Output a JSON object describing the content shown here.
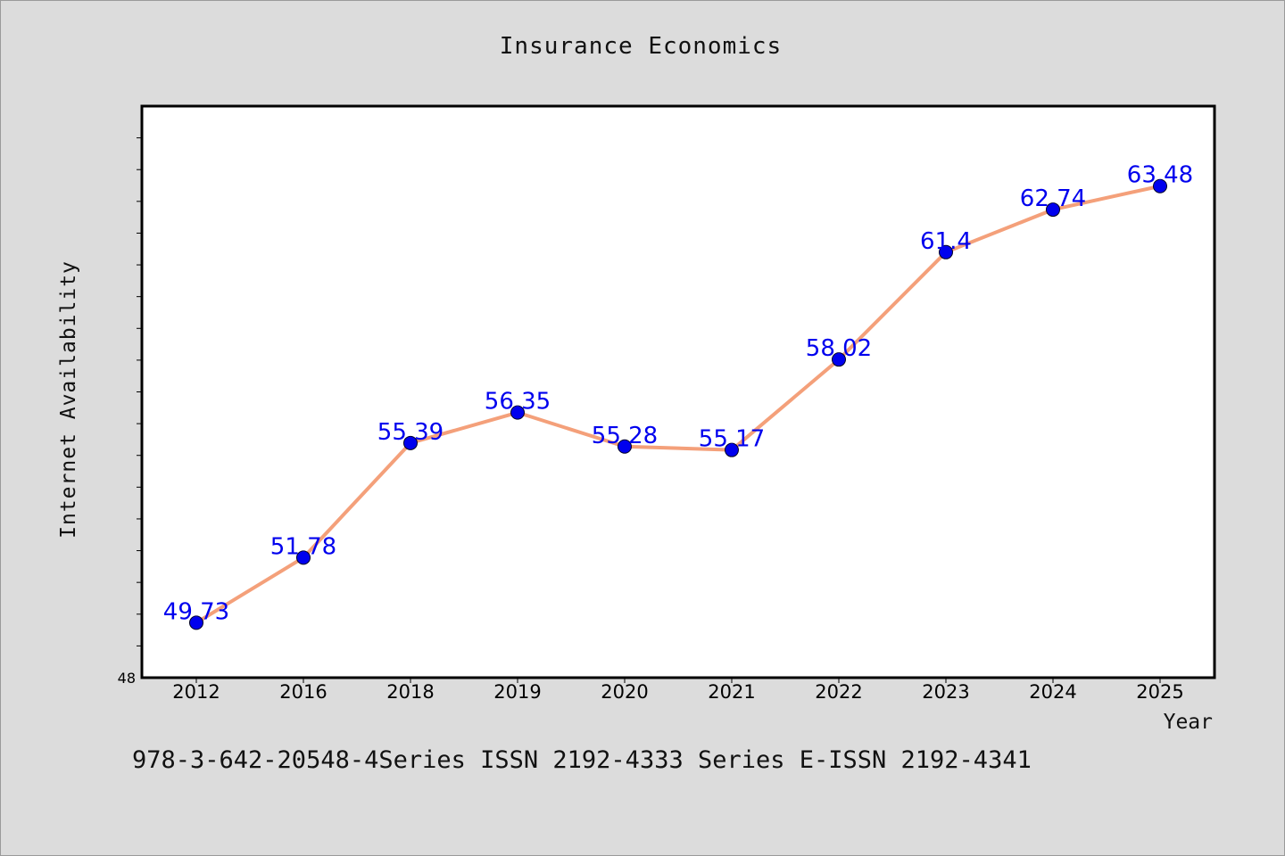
{
  "chart_data": {
    "type": "line",
    "title": "Insurance Economics",
    "xlabel": "Year",
    "ylabel": "Internet Availability",
    "categories": [
      "2012",
      "2016",
      "2018",
      "2019",
      "2020",
      "2021",
      "2022",
      "2023",
      "2024",
      "2025"
    ],
    "series": [
      {
        "values": [
          49.73,
          51.78,
          55.39,
          56.35,
          55.28,
          55.17,
          58.02,
          61.4,
          62.74,
          63.48
        ],
        "value_labels": [
          "49.73",
          "51.78",
          "55.39",
          "56.35",
          "55.28",
          "55.17",
          "58.02",
          "61.4",
          "62.74",
          "63.48"
        ],
        "line_color": "#f4a07a",
        "marker_color": "#0000ee",
        "label_color": "#0000ee"
      }
    ],
    "ylim": [
      48,
      66
    ],
    "ytick_labels": [
      "48"
    ],
    "grid": false,
    "legend": false,
    "footer": "978-3-642-20548-4Series ISSN 2192-4333 Series E-ISSN 2192-4341"
  }
}
